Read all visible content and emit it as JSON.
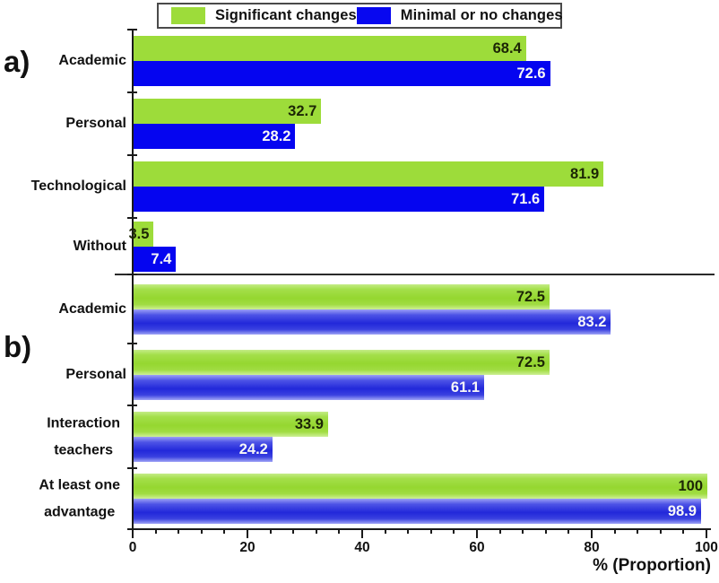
{
  "legend": {
    "items": [
      {
        "label": "Significant changes",
        "color": "#9ddc3a"
      },
      {
        "label": "Minimal or no changes",
        "color": "#0808f0"
      }
    ]
  },
  "chart_data": {
    "type": "bar",
    "orientation": "horizontal",
    "xlabel": "% (Proportion)",
    "xlim": [
      0,
      100
    ],
    "x_major_ticks": [
      0,
      20,
      40,
      60,
      80,
      100
    ],
    "x_minor_tick_step": 4,
    "legend_position": "top",
    "grid": false,
    "series_names": [
      "Significant changes",
      "Minimal or no changes"
    ],
    "panels": [
      {
        "label": "a)",
        "groups": [
          {
            "category_lines": [
              "Academic"
            ],
            "significant": 68.4,
            "minimal": 72.6
          },
          {
            "category_lines": [
              "Personal"
            ],
            "significant": 32.7,
            "minimal": 28.2
          },
          {
            "category_lines": [
              "Technological"
            ],
            "significant": 81.9,
            "minimal": 71.6
          },
          {
            "category_lines": [
              "Without"
            ],
            "significant": 3.5,
            "minimal": 7.4
          }
        ]
      },
      {
        "label": "b)",
        "groups": [
          {
            "category_lines": [
              "Academic"
            ],
            "significant": 72.5,
            "minimal": 83.2
          },
          {
            "category_lines": [
              "Personal"
            ],
            "significant": 72.5,
            "minimal": 61.1
          },
          {
            "category_lines": [
              "Interaction",
              "teachers"
            ],
            "significant": 33.9,
            "minimal": 24.2
          },
          {
            "category_lines": [
              "At least one",
              "advantage"
            ],
            "significant": 100,
            "minimal": 98.9
          }
        ]
      }
    ]
  },
  "colors": {
    "significant": "#9ddc3a",
    "minimal": "#0505f0",
    "axis": "#1a1a1a",
    "value_on_significant": "#1c2605",
    "value_on_minimal": "#f7f7f7"
  }
}
